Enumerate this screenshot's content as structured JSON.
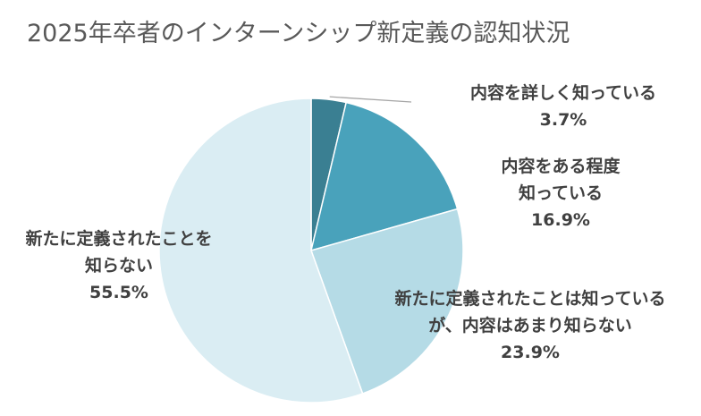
{
  "chart_data": {
    "type": "pie",
    "title": "2025年卒者のインターンシップ新定義の認知状況",
    "slices": [
      {
        "label_lines": [
          "内容を詳しく知っている"
        ],
        "value": 3.7,
        "value_label": "3.7%",
        "color": "#3a7f92"
      },
      {
        "label_lines": [
          "内容をある程度",
          "知っている"
        ],
        "value": 16.9,
        "value_label": "16.9%",
        "color": "#49a2bb"
      },
      {
        "label_lines": [
          "新たに定義されたことは知っている",
          "が、内容はあまり知らない"
        ],
        "value": 23.9,
        "value_label": "23.9%",
        "color": "#b5dbe6"
      },
      {
        "label_lines": [
          "新たに定義されたことを",
          "知らない"
        ],
        "value": 55.5,
        "value_label": "55.5%",
        "color": "#daedf3"
      }
    ],
    "start_angle": "12 o'clock",
    "direction": "clockwise",
    "legend": "none"
  }
}
